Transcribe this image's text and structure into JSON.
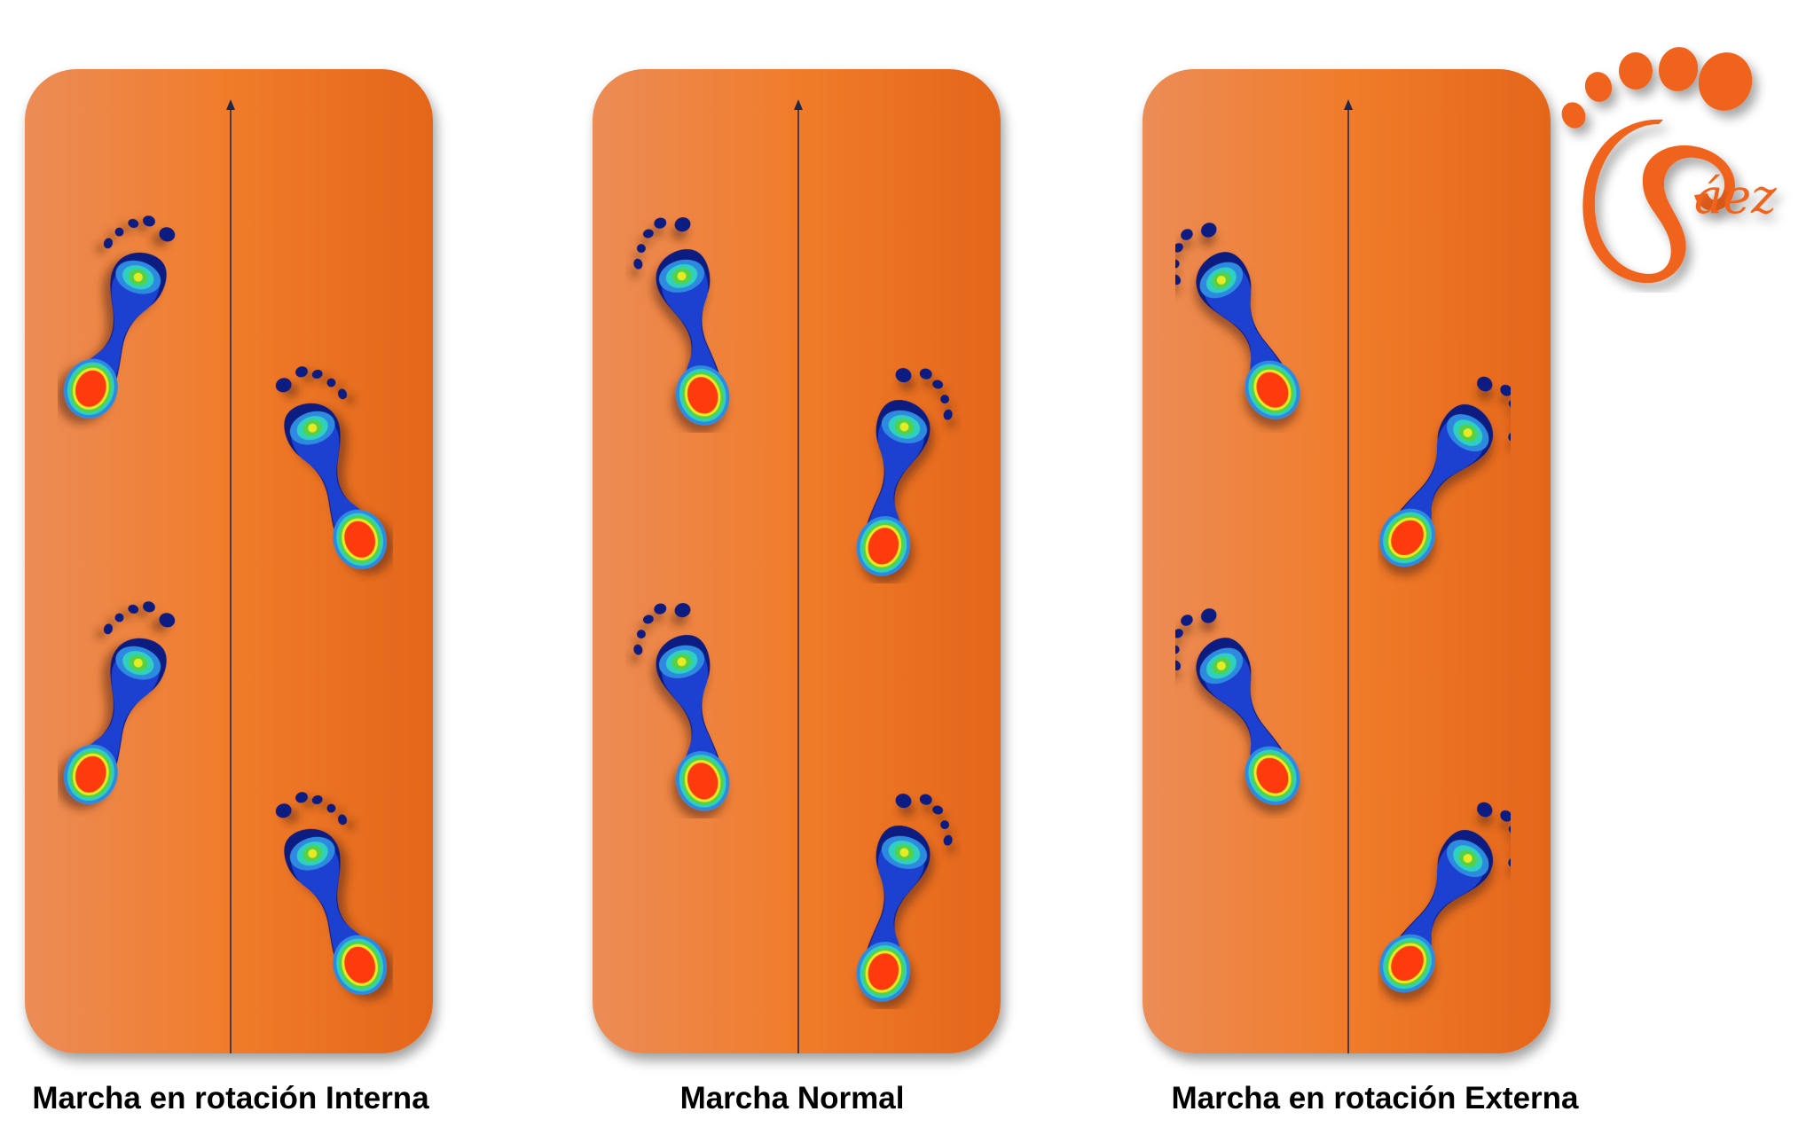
{
  "colors": {
    "panel_light": "#ec8c56",
    "panel_mid": "#f07c2a",
    "panel_dark": "#e4661a",
    "arrow": "#1f2a4a",
    "logo_orange": "#f0631a",
    "heat_scale": [
      "#0f1a80",
      "#1c3fd0",
      "#2f8ae0",
      "#2fd0c0",
      "#52d24a",
      "#e8ea22",
      "#ff3a10"
    ]
  },
  "panels": [
    {
      "key": "interna",
      "caption": "Marcha en rotación Interna",
      "gait": "internal rotation",
      "footprints": [
        {
          "side": "left",
          "rotation_deg": 18
        },
        {
          "side": "right",
          "rotation_deg": -18
        },
        {
          "side": "left",
          "rotation_deg": 18
        },
        {
          "side": "right",
          "rotation_deg": -18
        }
      ]
    },
    {
      "key": "normal",
      "caption": "Marcha Normal",
      "gait": "normal",
      "footprints": [
        {
          "side": "left",
          "rotation_deg": -15
        },
        {
          "side": "right",
          "rotation_deg": 15
        },
        {
          "side": "left",
          "rotation_deg": -15
        },
        {
          "side": "right",
          "rotation_deg": 15
        }
      ]
    },
    {
      "key": "externa",
      "caption": "Marcha en rotación Externa",
      "gait": "external rotation",
      "footprints": [
        {
          "side": "left",
          "rotation_deg": -30
        },
        {
          "side": "right",
          "rotation_deg": 35
        },
        {
          "side": "left",
          "rotation_deg": -30
        },
        {
          "side": "right",
          "rotation_deg": 35
        }
      ]
    }
  ],
  "logo": {
    "text": "Páez",
    "icon": "footprint-logo-icon"
  }
}
